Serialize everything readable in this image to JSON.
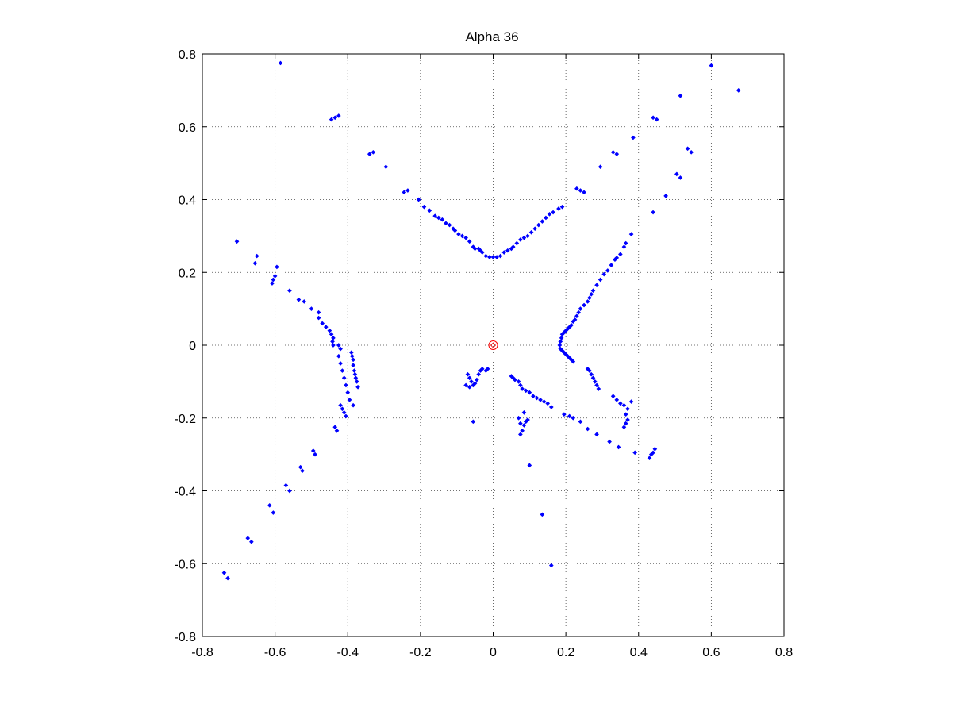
{
  "chart_data": {
    "type": "scatter",
    "title": "Alpha 36",
    "xlabel": "",
    "ylabel": "",
    "xlim": [
      -0.8,
      0.8
    ],
    "ylim": [
      -0.8,
      0.8
    ],
    "grid": true,
    "x_ticks": [
      -0.8,
      -0.6,
      -0.4,
      -0.2,
      0,
      0.2,
      0.4,
      0.6,
      0.8
    ],
    "y_ticks": [
      -0.8,
      -0.6,
      -0.4,
      -0.2,
      0,
      0.2,
      0.4,
      0.6,
      0.8
    ],
    "x_tick_labels": [
      "-0.8",
      "-0.6",
      "-0.4",
      "-0.2",
      "0",
      "0.2",
      "0.4",
      "0.6",
      "0.8"
    ],
    "y_tick_labels": [
      "-0.8",
      "-0.6",
      "-0.4",
      "-0.2",
      "0",
      "0.2",
      "0.4",
      "0.6",
      "0.8"
    ],
    "series": [
      {
        "marker": "dot",
        "color": "#0000ff",
        "points": [
          [
            -0.585,
            0.775
          ],
          [
            -0.445,
            0.62
          ],
          [
            -0.435,
            0.625
          ],
          [
            -0.425,
            0.63
          ],
          [
            -0.34,
            0.525
          ],
          [
            -0.33,
            0.53
          ],
          [
            -0.295,
            0.49
          ],
          [
            -0.245,
            0.42
          ],
          [
            -0.235,
            0.425
          ],
          [
            -0.205,
            0.4
          ],
          [
            -0.19,
            0.38
          ],
          [
            -0.175,
            0.37
          ],
          [
            -0.16,
            0.355
          ],
          [
            -0.15,
            0.35
          ],
          [
            -0.14,
            0.345
          ],
          [
            -0.13,
            0.335
          ],
          [
            -0.12,
            0.33
          ],
          [
            -0.11,
            0.32
          ],
          [
            -0.105,
            0.315
          ],
          [
            -0.095,
            0.305
          ],
          [
            -0.085,
            0.3
          ],
          [
            -0.075,
            0.295
          ],
          [
            -0.065,
            0.285
          ],
          [
            -0.055,
            0.27
          ],
          [
            -0.05,
            0.265
          ],
          [
            -0.04,
            0.265
          ],
          [
            -0.035,
            0.26
          ],
          [
            -0.03,
            0.255
          ],
          [
            -0.02,
            0.245
          ],
          [
            -0.01,
            0.242
          ],
          [
            0.0,
            0.242
          ],
          [
            0.01,
            0.242
          ],
          [
            0.02,
            0.245
          ],
          [
            0.03,
            0.255
          ],
          [
            0.04,
            0.26
          ],
          [
            0.05,
            0.265
          ],
          [
            0.055,
            0.27
          ],
          [
            0.065,
            0.28
          ],
          [
            0.075,
            0.29
          ],
          [
            0.085,
            0.295
          ],
          [
            0.095,
            0.3
          ],
          [
            0.105,
            0.31
          ],
          [
            0.115,
            0.32
          ],
          [
            0.125,
            0.33
          ],
          [
            0.135,
            0.34
          ],
          [
            0.145,
            0.35
          ],
          [
            0.155,
            0.36
          ],
          [
            0.165,
            0.365
          ],
          [
            0.18,
            0.375
          ],
          [
            0.19,
            0.38
          ],
          [
            0.23,
            0.43
          ],
          [
            0.24,
            0.425
          ],
          [
            0.25,
            0.42
          ],
          [
            0.295,
            0.49
          ],
          [
            0.33,
            0.53
          ],
          [
            0.34,
            0.525
          ],
          [
            0.385,
            0.57
          ],
          [
            0.44,
            0.625
          ],
          [
            0.45,
            0.62
          ],
          [
            0.515,
            0.685
          ],
          [
            0.6,
            0.768
          ],
          [
            0.675,
            0.7
          ],
          [
            0.535,
            0.54
          ],
          [
            0.545,
            0.53
          ],
          [
            0.505,
            0.47
          ],
          [
            0.515,
            0.46
          ],
          [
            0.475,
            0.41
          ],
          [
            0.44,
            0.365
          ],
          [
            0.38,
            0.305
          ],
          [
            0.365,
            0.28
          ],
          [
            0.36,
            0.27
          ],
          [
            0.35,
            0.25
          ],
          [
            0.34,
            0.24
          ],
          [
            0.335,
            0.235
          ],
          [
            0.325,
            0.22
          ],
          [
            0.315,
            0.205
          ],
          [
            0.305,
            0.195
          ],
          [
            0.295,
            0.18
          ],
          [
            0.285,
            0.165
          ],
          [
            0.275,
            0.15
          ],
          [
            0.27,
            0.14
          ],
          [
            0.265,
            0.13
          ],
          [
            0.26,
            0.12
          ],
          [
            0.25,
            0.11
          ],
          [
            0.24,
            0.1
          ],
          [
            0.235,
            0.09
          ],
          [
            0.23,
            0.08
          ],
          [
            0.225,
            0.07
          ],
          [
            0.22,
            0.065
          ],
          [
            0.215,
            0.055
          ],
          [
            0.21,
            0.05
          ],
          [
            0.205,
            0.045
          ],
          [
            0.2,
            0.04
          ],
          [
            0.195,
            0.035
          ],
          [
            0.19,
            0.03
          ],
          [
            0.188,
            0.02
          ],
          [
            0.185,
            0.01
          ],
          [
            0.183,
            0.0
          ],
          [
            0.185,
            -0.01
          ],
          [
            0.19,
            -0.015
          ],
          [
            0.195,
            -0.02
          ],
          [
            0.2,
            -0.025
          ],
          [
            0.205,
            -0.03
          ],
          [
            0.21,
            -0.035
          ],
          [
            0.215,
            -0.04
          ],
          [
            0.22,
            -0.045
          ],
          [
            0.265,
            -0.07
          ],
          [
            0.27,
            -0.08
          ],
          [
            0.275,
            -0.09
          ],
          [
            0.28,
            -0.1
          ],
          [
            0.285,
            -0.11
          ],
          [
            0.29,
            -0.12
          ],
          [
            0.26,
            -0.065
          ],
          [
            0.33,
            -0.14
          ],
          [
            0.34,
            -0.15
          ],
          [
            0.35,
            -0.16
          ],
          [
            0.36,
            -0.165
          ],
          [
            0.37,
            -0.175
          ],
          [
            0.38,
            -0.155
          ],
          [
            0.365,
            -0.19
          ],
          [
            0.37,
            -0.205
          ],
          [
            0.365,
            -0.215
          ],
          [
            0.36,
            -0.225
          ],
          [
            0.195,
            -0.19
          ],
          [
            0.21,
            -0.195
          ],
          [
            0.22,
            -0.2
          ],
          [
            0.24,
            -0.21
          ],
          [
            0.26,
            -0.23
          ],
          [
            0.285,
            -0.245
          ],
          [
            0.32,
            -0.265
          ],
          [
            0.345,
            -0.28
          ],
          [
            0.39,
            -0.295
          ],
          [
            0.43,
            -0.31
          ],
          [
            0.435,
            -0.3
          ],
          [
            0.44,
            -0.295
          ],
          [
            0.445,
            -0.285
          ],
          [
            0.05,
            -0.085
          ],
          [
            0.055,
            -0.09
          ],
          [
            0.06,
            -0.095
          ],
          [
            0.07,
            -0.1
          ],
          [
            0.075,
            -0.11
          ],
          [
            0.08,
            -0.12
          ],
          [
            0.09,
            -0.125
          ],
          [
            0.1,
            -0.13
          ],
          [
            0.11,
            -0.14
          ],
          [
            0.12,
            -0.145
          ],
          [
            0.13,
            -0.15
          ],
          [
            0.14,
            -0.155
          ],
          [
            0.15,
            -0.16
          ],
          [
            0.16,
            -0.17
          ],
          [
            0.07,
            -0.2
          ],
          [
            0.085,
            -0.185
          ],
          [
            0.09,
            -0.21
          ],
          [
            0.095,
            -0.205
          ],
          [
            0.075,
            -0.215
          ],
          [
            0.085,
            -0.22
          ],
          [
            0.08,
            -0.235
          ],
          [
            0.075,
            -0.245
          ],
          [
            0.1,
            -0.33
          ],
          [
            0.135,
            -0.465
          ],
          [
            0.16,
            -0.605
          ],
          [
            -0.07,
            -0.08
          ],
          [
            -0.065,
            -0.09
          ],
          [
            -0.06,
            -0.1
          ],
          [
            -0.055,
            -0.11
          ],
          [
            -0.05,
            -0.105
          ],
          [
            -0.045,
            -0.095
          ],
          [
            -0.04,
            -0.08
          ],
          [
            -0.035,
            -0.07
          ],
          [
            -0.03,
            -0.065
          ],
          [
            -0.02,
            -0.07
          ],
          [
            -0.015,
            -0.065
          ],
          [
            -0.065,
            -0.115
          ],
          [
            -0.075,
            -0.11
          ],
          [
            -0.055,
            -0.21
          ],
          [
            -0.705,
            0.285
          ],
          [
            -0.65,
            0.245
          ],
          [
            -0.655,
            0.225
          ],
          [
            -0.595,
            0.215
          ],
          [
            -0.6,
            0.19
          ],
          [
            -0.605,
            0.18
          ],
          [
            -0.608,
            0.17
          ],
          [
            -0.56,
            0.15
          ],
          [
            -0.535,
            0.125
          ],
          [
            -0.52,
            0.12
          ],
          [
            -0.5,
            0.1
          ],
          [
            -0.48,
            0.09
          ],
          [
            -0.48,
            0.075
          ],
          [
            -0.47,
            0.06
          ],
          [
            -0.46,
            0.05
          ],
          [
            -0.45,
            0.04
          ],
          [
            -0.445,
            0.03
          ],
          [
            -0.44,
            0.02
          ],
          [
            -0.442,
            0.01
          ],
          [
            -0.44,
            0.0
          ],
          [
            -0.425,
            0.0
          ],
          [
            -0.42,
            -0.01
          ],
          [
            -0.425,
            -0.03
          ],
          [
            -0.42,
            -0.05
          ],
          [
            -0.415,
            -0.07
          ],
          [
            -0.41,
            -0.09
          ],
          [
            -0.405,
            -0.11
          ],
          [
            -0.4,
            -0.13
          ],
          [
            -0.395,
            -0.15
          ],
          [
            -0.39,
            -0.02
          ],
          [
            -0.388,
            -0.03
          ],
          [
            -0.385,
            -0.04
          ],
          [
            -0.385,
            -0.055
          ],
          [
            -0.382,
            -0.07
          ],
          [
            -0.38,
            -0.08
          ],
          [
            -0.378,
            -0.09
          ],
          [
            -0.375,
            -0.1
          ],
          [
            -0.372,
            -0.115
          ],
          [
            -0.385,
            -0.165
          ],
          [
            -0.42,
            -0.165
          ],
          [
            -0.415,
            -0.175
          ],
          [
            -0.41,
            -0.185
          ],
          [
            -0.405,
            -0.195
          ],
          [
            -0.435,
            -0.225
          ],
          [
            -0.43,
            -0.235
          ],
          [
            -0.495,
            -0.29
          ],
          [
            -0.49,
            -0.3
          ],
          [
            -0.53,
            -0.335
          ],
          [
            -0.525,
            -0.345
          ],
          [
            -0.57,
            -0.385
          ],
          [
            -0.56,
            -0.4
          ],
          [
            -0.615,
            -0.44
          ],
          [
            -0.605,
            -0.46
          ],
          [
            -0.675,
            -0.53
          ],
          [
            -0.665,
            -0.54
          ],
          [
            -0.74,
            -0.625
          ],
          [
            -0.73,
            -0.64
          ]
        ]
      }
    ],
    "annotations": [
      {
        "marker": "circle",
        "color": "#ff0000",
        "point": [
          0,
          0
        ]
      }
    ]
  }
}
